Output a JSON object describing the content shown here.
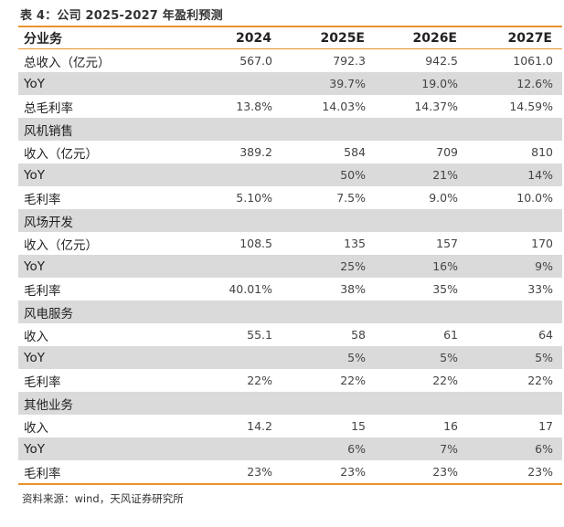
{
  "title": "表 4：公司 2025-2027 年盈利预测",
  "header": {
    "label": "分业务",
    "years": [
      "2024",
      "2025E",
      "2026E",
      "2027E"
    ]
  },
  "rows": [
    {
      "type": "data",
      "label": "总收入（亿元）",
      "values": [
        "567.0",
        "792.3",
        "942.5",
        "1061.0"
      ]
    },
    {
      "type": "shaded",
      "label": "YoY",
      "values": [
        "",
        "39.7%",
        "19.0%",
        "12.6%"
      ]
    },
    {
      "type": "data",
      "label": "总毛利率",
      "values": [
        "13.8%",
        "14.03%",
        "14.37%",
        "14.59%"
      ]
    },
    {
      "type": "section",
      "label": "风机销售",
      "values": [
        "",
        "",
        "",
        ""
      ]
    },
    {
      "type": "data",
      "label": "收入（亿元）",
      "values": [
        "389.2",
        "584",
        "709",
        "810"
      ]
    },
    {
      "type": "shaded",
      "label": "YoY",
      "values": [
        "",
        "50%",
        "21%",
        "14%"
      ]
    },
    {
      "type": "data",
      "label": "毛利率",
      "values": [
        "5.10%",
        "7.5%",
        "9.0%",
        "10.0%"
      ]
    },
    {
      "type": "section",
      "label": "风场开发",
      "values": [
        "",
        "",
        "",
        ""
      ]
    },
    {
      "type": "data",
      "label": "收入（亿元）",
      "values": [
        "108.5",
        "135",
        "157",
        "170"
      ]
    },
    {
      "type": "shaded",
      "label": "YoY",
      "values": [
        "",
        "25%",
        "16%",
        "9%"
      ]
    },
    {
      "type": "data",
      "label": "毛利率",
      "values": [
        "40.01%",
        "38%",
        "35%",
        "33%"
      ]
    },
    {
      "type": "section",
      "label": "风电服务",
      "values": [
        "",
        "",
        "",
        ""
      ]
    },
    {
      "type": "data",
      "label": "收入",
      "values": [
        "55.1",
        "58",
        "61",
        "64"
      ]
    },
    {
      "type": "shaded",
      "label": "YoY",
      "values": [
        "",
        "5%",
        "5%",
        "5%"
      ]
    },
    {
      "type": "data",
      "label": "毛利率",
      "values": [
        "22%",
        "22%",
        "22%",
        "22%"
      ]
    },
    {
      "type": "section",
      "label": "其他业务",
      "values": [
        "",
        "",
        "",
        ""
      ]
    },
    {
      "type": "data",
      "label": "收入",
      "values": [
        "14.2",
        "15",
        "16",
        "17"
      ]
    },
    {
      "type": "shaded",
      "label": "YoY",
      "values": [
        "",
        "6%",
        "7%",
        "6%"
      ]
    },
    {
      "type": "data",
      "label": "毛利率",
      "values": [
        "23%",
        "23%",
        "23%",
        "23%"
      ]
    }
  ],
  "source": "资料来源：wind，天风证券研究所",
  "colors": {
    "accent": "#e8932c",
    "shade": "#dadada"
  }
}
